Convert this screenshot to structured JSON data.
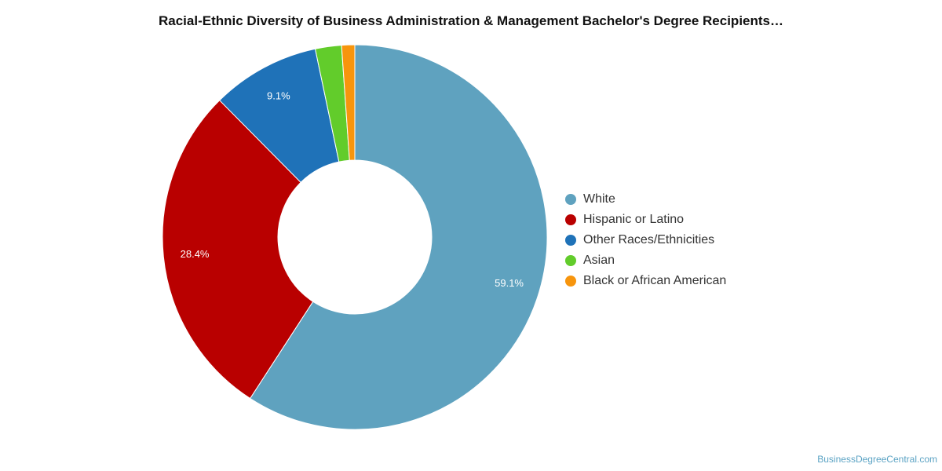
{
  "chart_data": {
    "type": "pie",
    "title": "Racial-Ethnic Diversity of Business Administration & Management Bachelor's Degree Recipients…",
    "categories": [
      "White",
      "Hispanic or Latino",
      "Other Races/Ethnicities",
      "Asian",
      "Black or African American"
    ],
    "values": [
      59.1,
      28.4,
      9.1,
      2.2,
      1.1
    ],
    "data_labels": [
      "59.1%",
      "28.4%",
      "9.1%",
      "",
      ""
    ],
    "colors": [
      "#5fa2bf",
      "#b90000",
      "#1f72b8",
      "#62cc2b",
      "#f7950d"
    ],
    "legend_position": "right",
    "donut": true
  },
  "credit": "BusinessDegreeCentral.com"
}
